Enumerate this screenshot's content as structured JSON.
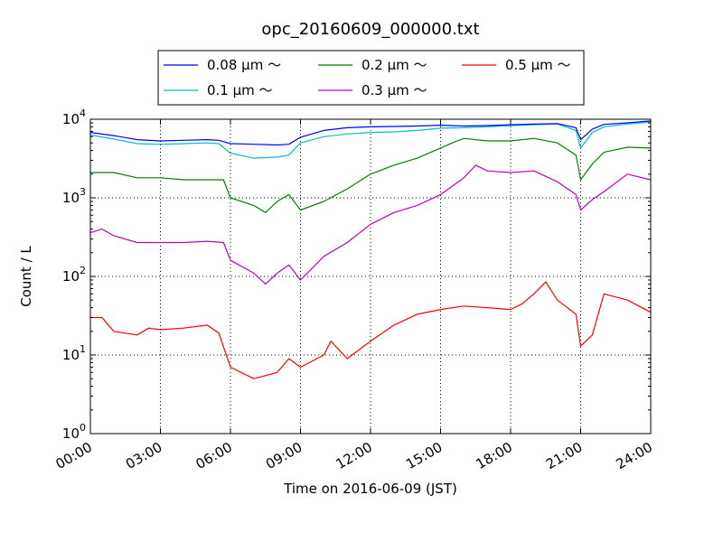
{
  "chart_data": {
    "type": "line",
    "title": "opc_20160609_000000.txt",
    "xlabel": "Time on 2016-06-09 (JST)",
    "ylabel": "Count / L",
    "x_unit": "hours",
    "xlim": [
      0,
      24
    ],
    "ylim": [
      1,
      10000
    ],
    "y_scale": "log",
    "grid": true,
    "legend_position": "top-center",
    "x_ticks": [
      {
        "value": 0,
        "label": "00:00"
      },
      {
        "value": 3,
        "label": "03:00"
      },
      {
        "value": 6,
        "label": "06:00"
      },
      {
        "value": 9,
        "label": "09:00"
      },
      {
        "value": 12,
        "label": "12:00"
      },
      {
        "value": 15,
        "label": "15:00"
      },
      {
        "value": 18,
        "label": "18:00"
      },
      {
        "value": 21,
        "label": "21:00"
      },
      {
        "value": 24,
        "label": "24:00"
      }
    ],
    "y_ticks": [
      {
        "value": 1,
        "base": "10",
        "exp": "0"
      },
      {
        "value": 10,
        "base": "10",
        "exp": "1"
      },
      {
        "value": 100,
        "base": "10",
        "exp": "2"
      },
      {
        "value": 1000,
        "base": "10",
        "exp": "3"
      },
      {
        "value": 10000,
        "base": "10",
        "exp": "4"
      }
    ],
    "series": [
      {
        "name": "0.08 μm ～",
        "color": "#0000ff",
        "x": [
          0,
          1,
          2,
          3,
          4,
          5,
          5.5,
          6,
          7,
          8,
          8.5,
          9,
          10,
          11,
          12,
          13,
          14,
          15,
          16,
          17,
          18,
          19,
          20,
          20.8,
          21,
          21.5,
          22,
          23,
          24
        ],
        "y": [
          6800,
          6200,
          5500,
          5300,
          5400,
          5500,
          5400,
          4900,
          4800,
          4700,
          4800,
          5900,
          7200,
          7800,
          8000,
          8100,
          8200,
          8400,
          8200,
          8300,
          8500,
          8700,
          8800,
          7800,
          5500,
          7500,
          8600,
          9000,
          9500
        ]
      },
      {
        "name": "0.1 μm ～",
        "color": "#00bfbf",
        "x": [
          0,
          1,
          2,
          3,
          4,
          5,
          5.5,
          6,
          7,
          8,
          8.5,
          9,
          10,
          11,
          12,
          13,
          14,
          15,
          16,
          17,
          18,
          19,
          20,
          20.8,
          21,
          21.5,
          22,
          23,
          24
        ],
        "y": [
          6300,
          5600,
          4900,
          4800,
          4900,
          5000,
          4900,
          3700,
          3200,
          3300,
          3500,
          5000,
          6000,
          6500,
          6800,
          6900,
          7200,
          7700,
          7800,
          8000,
          8300,
          8500,
          8700,
          7200,
          4300,
          6800,
          8000,
          8700,
          9200
        ]
      },
      {
        "name": "0.2 μm ～",
        "color": "#008000",
        "x": [
          0,
          1,
          2,
          3,
          4,
          5,
          5.7,
          6,
          7,
          7.5,
          8,
          8.5,
          9,
          10,
          11,
          12,
          13,
          14,
          15,
          15.5,
          16,
          17,
          18,
          19,
          20,
          20.8,
          21,
          21.5,
          22,
          23,
          24
        ],
        "y": [
          2100,
          2100,
          1800,
          1800,
          1700,
          1700,
          1700,
          1000,
          800,
          650,
          900,
          1100,
          700,
          900,
          1300,
          2000,
          2600,
          3200,
          4300,
          5000,
          5700,
          5300,
          5300,
          5700,
          5000,
          3500,
          1700,
          2700,
          3800,
          4400,
          4300
        ]
      },
      {
        "name": "0.3 μm ～",
        "color": "#bf00bf",
        "x": [
          0,
          0.5,
          1,
          2,
          3,
          4,
          5,
          5.7,
          6,
          7,
          7.5,
          8,
          8.5,
          9,
          10,
          11,
          12,
          13,
          14,
          15,
          16,
          16.5,
          17,
          18,
          19,
          20,
          20.8,
          21,
          21.5,
          22,
          23,
          24
        ],
        "y": [
          360,
          400,
          330,
          270,
          270,
          270,
          280,
          270,
          160,
          110,
          80,
          110,
          140,
          90,
          180,
          270,
          460,
          650,
          800,
          1100,
          1800,
          2600,
          2200,
          2100,
          2200,
          1600,
          1100,
          700,
          950,
          1200,
          2000,
          1700
        ]
      },
      {
        "name": "0.5 μm ～",
        "color": "#ff0000",
        "x": [
          0,
          0.5,
          1,
          2,
          2.5,
          3,
          4,
          5,
          5.5,
          6,
          7,
          8,
          8.5,
          9,
          10,
          10.3,
          11,
          12,
          13,
          14,
          15,
          16,
          17,
          18,
          18.5,
          19,
          19.5,
          20,
          20.8,
          21,
          21.5,
          22,
          23,
          24
        ],
        "y": [
          30,
          30,
          20,
          18,
          22,
          21,
          22,
          24,
          19,
          7,
          5,
          6,
          9,
          7,
          10,
          15,
          9,
          15,
          24,
          33,
          38,
          42,
          40,
          38,
          45,
          60,
          85,
          50,
          33,
          13,
          18,
          60,
          50,
          35
        ]
      }
    ]
  }
}
